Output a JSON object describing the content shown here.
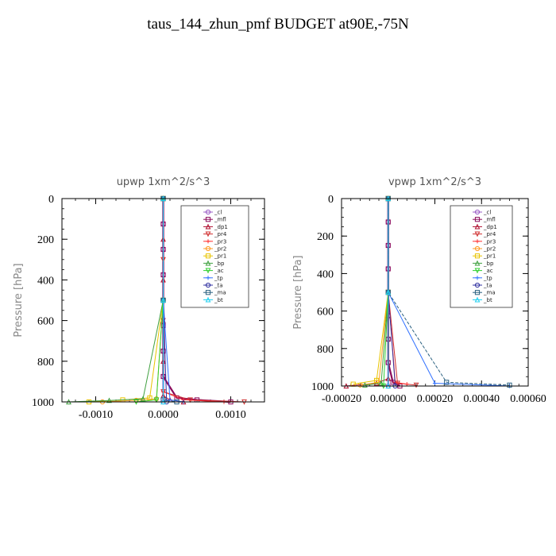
{
  "title": "taus_144_zhun_pmf  BUDGET at90E,-75N",
  "chart_data": [
    {
      "type": "line",
      "title": "upwp   1xm^2/s^3",
      "ylabel": "Pressure [hPa]",
      "xlim": [
        -0.0015,
        0.0015
      ],
      "ylim": [
        1000,
        0
      ],
      "xticks": [
        -0.001,
        0,
        0.001
      ],
      "xtick_labels": [
        "-0.0010",
        "0.0000",
        "0.0010"
      ],
      "yticks": [
        0,
        200,
        400,
        600,
        800,
        1000
      ],
      "ytick_labels": [
        "0",
        "200",
        "400",
        "600",
        "800",
        "1000"
      ],
      "legend_placement": "top-right",
      "series": [
        {
          "name": "_cl",
          "color": "#9a5cc6",
          "x": [
            0,
            0,
            0,
            0,
            0,
            0,
            0,
            0,
            0
          ],
          "y": [
            0,
            125,
            250,
            375,
            500,
            625,
            750,
            875,
            1000
          ]
        },
        {
          "name": "_mfl",
          "color": "#8b0a5a",
          "x": [
            0,
            0,
            0,
            0,
            0,
            0,
            0,
            0,
            0.0002,
            0.0005,
            0.001
          ],
          "y": [
            0,
            125,
            250,
            375,
            500,
            625,
            750,
            875,
            980,
            990,
            1000
          ]
        },
        {
          "name": "_dp1",
          "color": "#b01030",
          "x": [
            0,
            0,
            0,
            0,
            0,
            0,
            0.0001,
            0.0003
          ],
          "y": [
            0,
            200,
            400,
            600,
            800,
            970,
            990,
            1000
          ]
        },
        {
          "name": "_pr4",
          "color": "#d03030",
          "x": [
            0,
            0,
            0,
            0,
            0.0004,
            0.0012
          ],
          "y": [
            0,
            300,
            600,
            950,
            990,
            1000
          ]
        },
        {
          "name": "_pr3",
          "color": "#ff3030",
          "x": [
            0,
            0,
            0,
            0.0003,
            0.0009
          ],
          "y": [
            0,
            500,
            950,
            990,
            1000
          ]
        },
        {
          "name": "_pr2",
          "color": "#ff9a20",
          "x": [
            0,
            0,
            -0.0001,
            -0.0004,
            -0.0009
          ],
          "y": [
            0,
            500,
            985,
            992,
            1000
          ]
        },
        {
          "name": "_pr1",
          "color": "#e8c400",
          "x": [
            0,
            0,
            -0.0002,
            -0.0006,
            -0.0011
          ],
          "y": [
            0,
            500,
            980,
            990,
            1000
          ]
        },
        {
          "name": "_bp",
          "color": "#40a040",
          "x": [
            0,
            0,
            -0.0003,
            -0.0008,
            -0.0014
          ],
          "y": [
            0,
            500,
            985,
            993,
            1000
          ]
        },
        {
          "name": "_ac",
          "color": "#30d030",
          "x": [
            0,
            0,
            -0.0001,
            -0.0004
          ],
          "y": [
            0,
            500,
            990,
            1000
          ]
        },
        {
          "name": "_tp",
          "color": "#3070ff",
          "x": [
            0,
            0,
            0.0001,
            0.0003
          ],
          "y": [
            0,
            500,
            990,
            1000
          ]
        },
        {
          "name": "_ta",
          "color": "#3030a0",
          "x": [
            0,
            0,
            5e-05
          ],
          "y": [
            0,
            500,
            1000
          ]
        },
        {
          "name": "_ma",
          "color": "#2a6080",
          "x": [
            0,
            0,
            0,
            0.0002
          ],
          "y": [
            0,
            500,
            990,
            1000
          ]
        },
        {
          "name": "_bt",
          "color": "#20d0f0",
          "x": [
            0,
            0,
            0
          ],
          "y": [
            0,
            500,
            1000
          ]
        }
      ]
    },
    {
      "type": "line",
      "title": "vpwp   1xm^2/s^3",
      "ylabel": "Pressure [hPa]",
      "xlim": [
        -0.0002,
        0.0006
      ],
      "ylim": [
        1000,
        0
      ],
      "xticks": [
        -0.0002,
        0,
        0.0002,
        0.0004,
        0.0006
      ],
      "xtick_labels": [
        "-0.00020",
        "0.00000",
        "0.00020",
        "0.00040",
        "0.00060"
      ],
      "yticks": [
        0,
        200,
        400,
        600,
        800,
        1000
      ],
      "ytick_labels": [
        "0",
        "200",
        "400",
        "600",
        "800",
        "1000"
      ],
      "legend_placement": "top-right",
      "series": [
        {
          "name": "_cl",
          "color": "#9a5cc6",
          "x": [
            0,
            0,
            0,
            0,
            0,
            0,
            0,
            0,
            0
          ],
          "y": [
            0,
            125,
            250,
            375,
            500,
            625,
            750,
            875,
            1000
          ]
        },
        {
          "name": "_mfl",
          "color": "#8b0a5a",
          "x": [
            0,
            0,
            0,
            0,
            0,
            0,
            0,
            0,
            2e-05,
            5e-05
          ],
          "y": [
            0,
            125,
            250,
            375,
            500,
            625,
            750,
            875,
            980,
            1000
          ]
        },
        {
          "name": "_dp1",
          "color": "#b01030",
          "x": [
            0,
            0,
            0,
            -5e-05,
            -0.00018
          ],
          "y": [
            0,
            500,
            960,
            985,
            1000
          ]
        },
        {
          "name": "_pr4",
          "color": "#d03030",
          "x": [
            0,
            0,
            4e-05,
            0.00012
          ],
          "y": [
            0,
            500,
            985,
            995
          ]
        },
        {
          "name": "_pr3",
          "color": "#ff3030",
          "x": [
            0,
            0,
            3e-05,
            8e-05
          ],
          "y": [
            0,
            500,
            980,
            990
          ]
        },
        {
          "name": "_pr2",
          "color": "#ff9a20",
          "x": [
            0,
            0,
            -4e-05,
            -0.00012
          ],
          "y": [
            0,
            500,
            980,
            995
          ]
        },
        {
          "name": "_pr1",
          "color": "#e8c400",
          "x": [
            0,
            0,
            -5e-05,
            -0.00015
          ],
          "y": [
            0,
            500,
            970,
            990
          ]
        },
        {
          "name": "_bp",
          "color": "#40a040",
          "x": [
            0,
            0,
            -3e-05,
            -0.0001
          ],
          "y": [
            0,
            500,
            985,
            995
          ]
        },
        {
          "name": "_ac",
          "color": "#30d030",
          "x": [
            0,
            0,
            -2e-05
          ],
          "y": [
            0,
            500,
            1000
          ]
        },
        {
          "name": "_tp",
          "color": "#3070ff",
          "x": [
            0,
            0,
            0.0002,
            0.00052
          ],
          "y": [
            0,
            500,
            985,
            1000
          ]
        },
        {
          "name": "_ta",
          "color": "#3030a0",
          "x": [
            0,
            0,
            3e-05
          ],
          "y": [
            0,
            500,
            1000
          ]
        },
        {
          "name": "_ma",
          "color": "#2a6080",
          "x": [
            0,
            0,
            0.00025,
            0.00052
          ],
          "y": [
            0,
            500,
            980,
            995
          ]
        },
        {
          "name": "_bt",
          "color": "#20d0f0",
          "x": [
            0,
            0,
            0
          ],
          "y": [
            0,
            500,
            1000
          ]
        }
      ]
    }
  ]
}
